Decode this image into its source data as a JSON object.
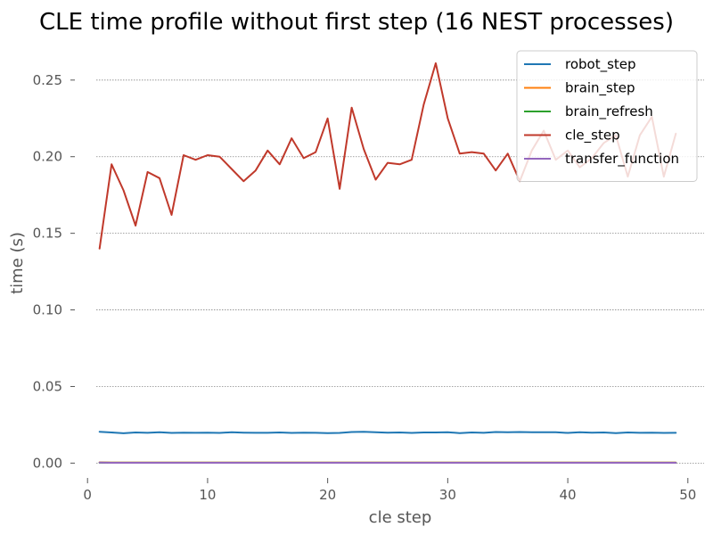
{
  "chart_data": {
    "type": "line",
    "title": "CLE time profile without first step (16 NEST processes)",
    "xlabel": "cle step",
    "ylabel": "time (s)",
    "xlim": [
      -1.5,
      51.5
    ],
    "ylim": [
      -0.012,
      0.272
    ],
    "x_ticks": [
      0,
      10,
      20,
      30,
      40,
      50
    ],
    "x_tick_labels": [
      "0",
      "10",
      "20",
      "30",
      "40",
      "50"
    ],
    "y_ticks": [
      0.0,
      0.05,
      0.1,
      0.15,
      0.2,
      0.25
    ],
    "y_tick_labels": [
      "0.00",
      "0.05",
      "0.10",
      "0.15",
      "0.20",
      "0.25"
    ],
    "grid": "horizontal dotted",
    "legend_placement": "top-right",
    "x": [
      1,
      2,
      3,
      4,
      5,
      6,
      7,
      8,
      9,
      10,
      11,
      12,
      13,
      14,
      15,
      16,
      17,
      18,
      19,
      20,
      21,
      22,
      23,
      24,
      25,
      26,
      27,
      28,
      29,
      30,
      31,
      32,
      33,
      34,
      35,
      36,
      37,
      38,
      39,
      40,
      41,
      42,
      43,
      44,
      45,
      46,
      47,
      48,
      49
    ],
    "series": [
      {
        "name": "robot_step",
        "color": "#1f77b4",
        "values": [
          0.0205,
          0.02,
          0.0195,
          0.02,
          0.0198,
          0.0202,
          0.0197,
          0.0199,
          0.0198,
          0.0199,
          0.0197,
          0.0201,
          0.0199,
          0.0198,
          0.0198,
          0.02,
          0.0197,
          0.0199,
          0.0198,
          0.0196,
          0.0197,
          0.0203,
          0.0204,
          0.0201,
          0.0199,
          0.02,
          0.0197,
          0.02,
          0.02,
          0.0202,
          0.0196,
          0.02,
          0.0198,
          0.0203,
          0.0202,
          0.0203,
          0.0201,
          0.0202,
          0.0201,
          0.0197,
          0.0202,
          0.0199,
          0.02,
          0.0196,
          0.02,
          0.0198,
          0.0199,
          0.0197,
          0.0198
        ]
      },
      {
        "name": "brain_step",
        "color": "#ff7f0e",
        "values": [
          0.0005,
          0.0004,
          0.0004,
          0.0004,
          0.0004,
          0.0004,
          0.0004,
          0.0004,
          0.0004,
          0.0004,
          0.0004,
          0.0004,
          0.0004,
          0.0004,
          0.0004,
          0.0004,
          0.0004,
          0.0004,
          0.0004,
          0.0004,
          0.0004,
          0.0004,
          0.0004,
          0.0004,
          0.0004,
          0.0004,
          0.0004,
          0.0004,
          0.0004,
          0.0004,
          0.0004,
          0.0004,
          0.0004,
          0.0004,
          0.0004,
          0.0004,
          0.0004,
          0.0004,
          0.0004,
          0.0004,
          0.0004,
          0.0004,
          0.0004,
          0.0004,
          0.0004,
          0.0004,
          0.0004,
          0.0004,
          0.0004
        ]
      },
      {
        "name": "brain_refresh",
        "color": "#2ca02c",
        "values": [
          0.0003,
          0.0003,
          0.0003,
          0.0003,
          0.0003,
          0.0003,
          0.0003,
          0.0003,
          0.0003,
          0.0003,
          0.0003,
          0.0003,
          0.0003,
          0.0003,
          0.0003,
          0.0003,
          0.0003,
          0.0003,
          0.0003,
          0.0003,
          0.0003,
          0.0003,
          0.0003,
          0.0003,
          0.0003,
          0.0003,
          0.0003,
          0.0003,
          0.0003,
          0.0003,
          0.0003,
          0.0003,
          0.0003,
          0.0003,
          0.0003,
          0.0003,
          0.0003,
          0.0003,
          0.0003,
          0.0003,
          0.0003,
          0.0003,
          0.0003,
          0.0003,
          0.0003,
          0.0003,
          0.0003,
          0.0003,
          0.0003
        ]
      },
      {
        "name": "cle_step",
        "color": "#c0392b",
        "values": [
          0.14,
          0.195,
          0.178,
          0.155,
          0.19,
          0.186,
          0.162,
          0.201,
          0.198,
          0.201,
          0.2,
          0.192,
          0.184,
          0.191,
          0.204,
          0.195,
          0.212,
          0.199,
          0.203,
          0.225,
          0.179,
          0.232,
          0.205,
          0.185,
          0.196,
          0.195,
          0.198,
          0.234,
          0.261,
          0.225,
          0.202,
          0.203,
          0.202,
          0.191,
          0.202,
          0.184,
          0.204,
          0.217,
          0.198,
          0.204,
          0.193,
          0.199,
          0.209,
          0.214,
          0.187,
          0.214,
          0.226,
          0.187,
          0.215
        ]
      },
      {
        "name": "transfer_function",
        "color": "#9467bd",
        "values": [
          0.0004,
          0.0002,
          0.0002,
          0.0002,
          0.0002,
          0.0002,
          0.0002,
          0.0002,
          0.0002,
          0.0002,
          0.0002,
          0.0002,
          0.0002,
          0.0002,
          0.0002,
          0.0002,
          0.0002,
          0.0002,
          0.0002,
          0.0002,
          0.0002,
          0.0002,
          0.0002,
          0.0002,
          0.0002,
          0.0002,
          0.0002,
          0.0002,
          0.0002,
          0.0002,
          0.0002,
          0.0002,
          0.0002,
          0.0002,
          0.0002,
          0.0002,
          0.0002,
          0.0002,
          0.0002,
          0.0002,
          0.0002,
          0.0002,
          0.0002,
          0.0002,
          0.0002,
          0.0002,
          0.0002,
          0.0002,
          0.0002
        ]
      }
    ]
  }
}
